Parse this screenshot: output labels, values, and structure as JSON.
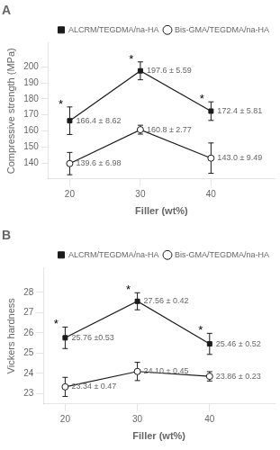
{
  "chart_data": [
    {
      "type": "line",
      "title": "A",
      "x": [
        20,
        30,
        40
      ],
      "series": [
        {
          "name": "ALCRM/TEGDMA/na-HA",
          "color": "#1a1a1a",
          "marker": "filled_square",
          "values": [
            166.4,
            197.6,
            172.4
          ],
          "errors": [
            8.62,
            5.59,
            5.81
          ],
          "value_labels": [
            "166.4 ± 8.62",
            "197.6 ± 5.59",
            "172.4 ± 5.81"
          ]
        },
        {
          "name": "Bis-GMA/TEGDMA/na-HA",
          "color": "#1a1a1a",
          "marker": "open_circle",
          "values": [
            139.6,
            160.8,
            143.0
          ],
          "errors": [
            6.98,
            2.77,
            9.49
          ],
          "value_labels": [
            "139.6 ± 6.98",
            "160.8 ± 2.77",
            "143.0 ± 9.49"
          ]
        }
      ],
      "xlabel": "Filler (wt%)",
      "ylabel": "Compressive strength (MPa)",
      "xlim": [
        17,
        49
      ],
      "xticks": [
        20,
        30,
        40
      ],
      "ylim": [
        130,
        215
      ],
      "yticks": [
        140,
        150,
        160,
        170,
        180,
        190,
        200
      ],
      "grid": false,
      "legend": "upper right",
      "data_labels": true,
      "annotations": [
        {
          "text": "*",
          "x": 20
        },
        {
          "text": "*",
          "x": 30
        },
        {
          "text": "*",
          "x": 40
        }
      ]
    },
    {
      "type": "line",
      "title": "B",
      "x": [
        20,
        30,
        40
      ],
      "series": [
        {
          "name": "ALCRM/TEGDMA/na-HA",
          "color": "#1a1a1a",
          "marker": "filled_square",
          "values": [
            25.76,
            27.56,
            25.46
          ],
          "errors": [
            0.53,
            0.42,
            0.52
          ],
          "value_labels": [
            "25.76 ±0.53",
            "27.56 ± 0.42",
            "25.46 ± 0.52"
          ]
        },
        {
          "name": "Bis-GMA/TEGDMA/na-HA",
          "color": "#1a1a1a",
          "marker": "open_circle",
          "values": [
            23.34,
            24.1,
            23.86
          ],
          "errors": [
            0.47,
            0.45,
            0.23
          ],
          "value_labels": [
            "23.34 ± 0.47",
            "24.10 ± 0.45",
            "23.86 ± 0.23"
          ]
        }
      ],
      "xlabel": "Filler (wt%)",
      "ylabel": "Vickers hardness",
      "xlim": [
        17,
        49
      ],
      "xticks": [
        20,
        30,
        40
      ],
      "ylim": [
        22.5,
        29.2
      ],
      "yticks": [
        23,
        24,
        25,
        26,
        27,
        28
      ],
      "grid": false,
      "legend": "upper right",
      "data_labels": true,
      "annotations": [
        {
          "text": "*",
          "x": 20
        },
        {
          "text": "*",
          "x": 30
        },
        {
          "text": "*",
          "x": 40
        }
      ]
    }
  ]
}
